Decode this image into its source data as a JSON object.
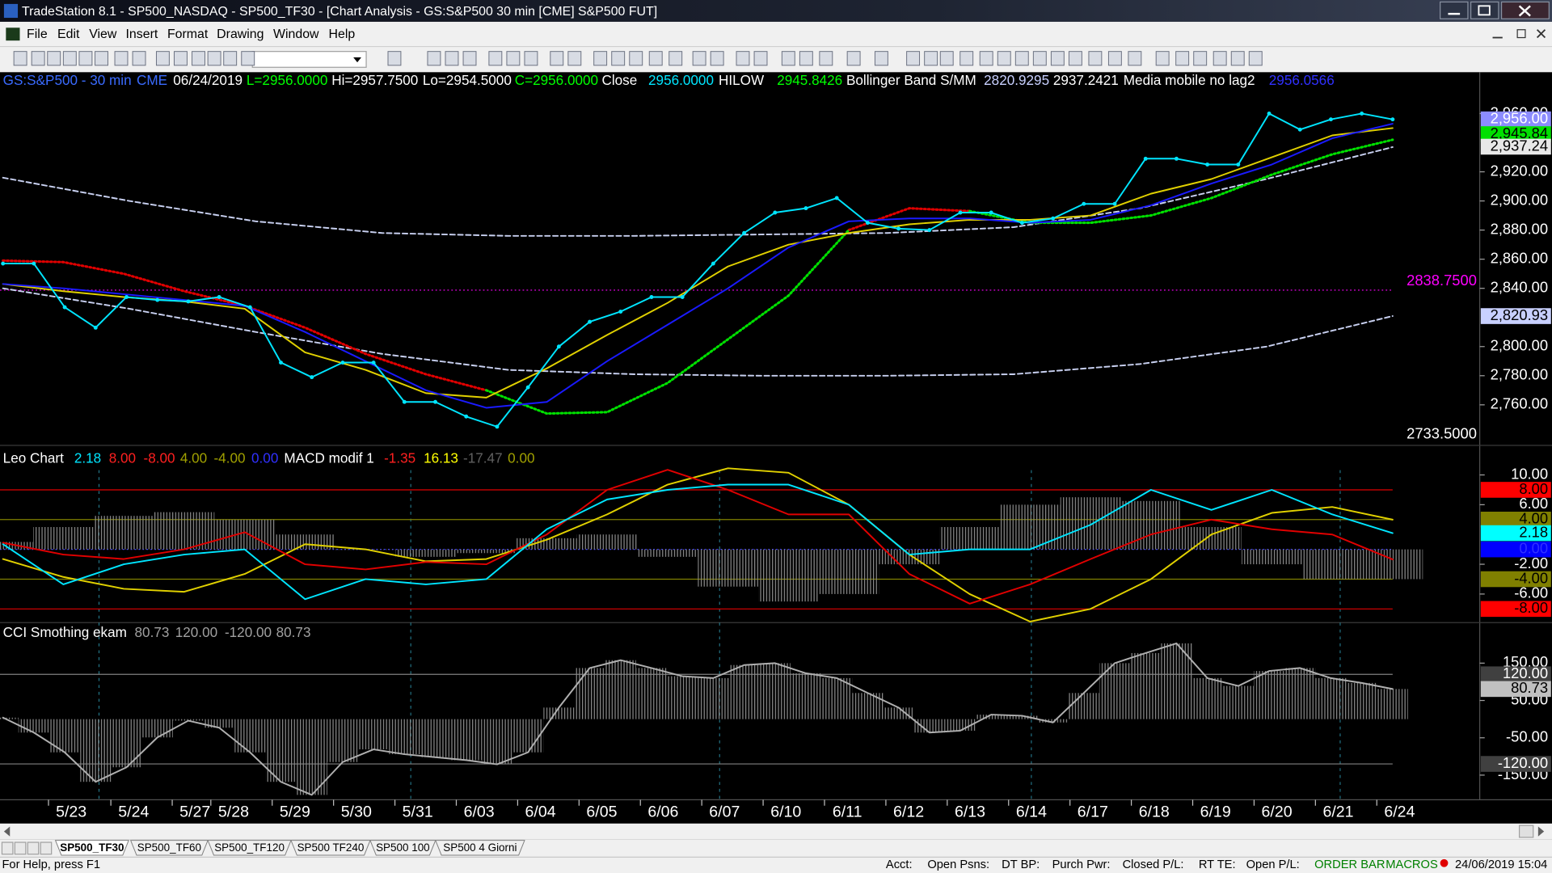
{
  "window": {
    "title": "TradeStation 8.1 - SP500_NASDAQ - SP500_TF30 - [Chart Analysis - GS:S&P500  30 min  [CME] S&P500 FUT]"
  },
  "menu": [
    "File",
    "Edit",
    "View",
    "Insert",
    "Format",
    "Drawing",
    "Window",
    "Help"
  ],
  "date_axis": [
    "5/23",
    "5/24",
    "5/27",
    "5/28",
    "5/29",
    "5/30",
    "5/31",
    "6/03",
    "6/04",
    "6/05",
    "6/06",
    "6/07",
    "6/10",
    "6/11",
    "6/12",
    "6/13",
    "6/14",
    "6/17",
    "6/18",
    "6/19",
    "6/20",
    "6/21",
    "6/24"
  ],
  "tabs": [
    "SP500_TF30",
    "SP500_TF60",
    "SP500_TF120",
    "SP500 TF240",
    "SP500 100",
    "SP500 4 Giorni"
  ],
  "status": [
    {
      "text": "For Help, press F1",
      "color": "#000000"
    },
    {
      "text": "Acct:",
      "color": "#000000"
    },
    {
      "text": "Open Psns:",
      "color": "#000000"
    },
    {
      "text": "DT BP:",
      "color": "#000000"
    },
    {
      "text": "Purch Pwr:",
      "color": "#000000"
    },
    {
      "text": "Closed P/L:",
      "color": "#000000"
    },
    {
      "text": "RT TE:",
      "color": "#000000"
    },
    {
      "text": "Open P/L:",
      "color": "#000000"
    },
    {
      "text": "ORDER BAR",
      "color": "#008000"
    },
    {
      "text": "MACROS",
      "color": "#008000"
    },
    {
      "text": "24/06/2019 15:04",
      "color": "#000000"
    }
  ],
  "chart_data": [
    {
      "type": "line",
      "ylim": [
        2733.5,
        2987
      ],
      "yticks": [
        {
          "value": 2760,
          "label": "2,760.00"
        },
        {
          "value": 2780,
          "label": "2,780.00"
        },
        {
          "value": 2800,
          "label": "2,800.00"
        },
        {
          "value": 2840,
          "label": "2,840.00"
        },
        {
          "value": 2860,
          "label": "2,860.00"
        },
        {
          "value": 2880,
          "label": "2,880.00"
        },
        {
          "value": 2900,
          "label": "2,900.00"
        },
        {
          "value": 2920,
          "label": "2,920.00"
        },
        {
          "value": 2960,
          "label": "2,960.00"
        }
      ],
      "header": [
        {
          "text": "GS:S&P500 - 30 min",
          "color": "#3a6bff"
        },
        {
          "text": "CME",
          "color": "#3a6bff"
        },
        {
          "text": "06/24/2019",
          "color": "#ffffff"
        },
        {
          "text": "L=2956.0000",
          "color": "#00ff00"
        },
        {
          "text": "Hi=2957.7500",
          "color": "#ffffff"
        },
        {
          "text": "Lo=2954.5000",
          "color": "#ffffff"
        },
        {
          "text": "C=2956.0000",
          "color": "#00ff00"
        },
        {
          "text": "Close",
          "color": "#ffffff"
        },
        {
          "text": "2956.0000",
          "color": "#00e5ff"
        },
        {
          "text": "HILOW",
          "color": "#ffffff"
        },
        {
          "text": "2945.8426",
          "color": "#00ff00"
        },
        {
          "text": "Bollinger Band S/MM",
          "color": "#ffffff"
        },
        {
          "text": "2820.9295",
          "color": "#c8d0ff"
        },
        {
          "text": "2937.2421",
          "color": "#ffffff"
        },
        {
          "text": "Media mobile no lag2",
          "color": "#ffffff"
        },
        {
          "text": "2956.0566",
          "color": "#3030ff"
        }
      ],
      "levels": [
        {
          "value": 2838.75,
          "color": "#ff00ff",
          "style": "dotted"
        }
      ],
      "series": [
        {
          "color": "#c8d0f0",
          "style": "dashed",
          "values": [
            2916,
            2900,
            2886,
            2878,
            2876,
            2876,
            2877,
            2878,
            2882,
            2895,
            2915,
            2937
          ]
        },
        {
          "color": "#c8d0f0",
          "style": "dashed",
          "values": [
            2840,
            2826,
            2810,
            2795,
            2784,
            2781,
            2780,
            2780,
            2781,
            2788,
            2800,
            2821
          ]
        },
        {
          "color": "#e00000",
          "style": "dotted",
          "values": [
            2859,
            2858,
            2850,
            2838,
            2828,
            2813,
            2795,
            2781,
            2770,
            null,
            null,
            null,
            null,
            null,
            2880,
            2895,
            2893,
            null,
            null,
            null,
            null,
            null,
            null,
            null
          ]
        },
        {
          "color": "#00e000",
          "style": "dotted",
          "values": [
            null,
            null,
            null,
            null,
            null,
            null,
            null,
            null,
            2770,
            2754,
            2755,
            2775,
            2805,
            2835,
            2880,
            null,
            2893,
            2885,
            2885,
            2890,
            2902,
            2918,
            2932,
            2942
          ]
        },
        {
          "color": "#e0d000",
          "style": "line",
          "values": [
            2843,
            2838,
            2834,
            2831,
            2826,
            2796,
            2784,
            2768,
            2765,
            2785,
            2808,
            2830,
            2855,
            2870,
            2878,
            2884,
            2887,
            2887,
            2890,
            2905,
            2915,
            2930,
            2945,
            2950
          ]
        },
        {
          "color": "#1a1aff",
          "style": "line",
          "values": [
            2843,
            2840,
            2836,
            2832,
            2828,
            2810,
            2790,
            2770,
            2758,
            2762,
            2790,
            2815,
            2840,
            2868,
            2886,
            2888,
            2888,
            2885,
            2887,
            2897,
            2912,
            2925,
            2943,
            2953
          ]
        },
        {
          "color": "#00e5ff",
          "style": "dots",
          "values": [
            2857,
            2857,
            2827,
            2813,
            2834,
            2832,
            2831,
            2834,
            2827,
            2789,
            2779,
            2789,
            2789,
            2762,
            2762,
            2752,
            2745,
            2772,
            2800,
            2817,
            2824,
            2834,
            2834,
            2857,
            2878,
            2892,
            2895,
            2902,
            2885,
            2881,
            2880,
            2892,
            2892,
            2885,
            2888,
            2898,
            2898,
            2929,
            2929,
            2925,
            2925,
            2960,
            2949,
            2956,
            2960,
            2956
          ]
        }
      ],
      "axis_markers": [
        {
          "value": 2956,
          "label": "2,956.00",
          "bg": "#8c8cff",
          "color": "#ffffff"
        },
        {
          "value": 2945.84,
          "label": "2,945.84",
          "bg": "#00e000",
          "color": "#000000"
        },
        {
          "value": 2937.24,
          "label": "2,937.24",
          "bg": "#e8e8e8",
          "color": "#000000"
        },
        {
          "value": 2820.93,
          "label": "2,820.93",
          "bg": "#c8d0ff",
          "color": "#000000"
        },
        {
          "value": 2838.75,
          "label": "2838.7500",
          "color": "#ff00ff"
        },
        {
          "value": 2733.5,
          "label": "2733.5000",
          "color": "#ffffff"
        }
      ]
    },
    {
      "type": "line",
      "ylim": [
        -9.7,
        13.3
      ],
      "yticks": [
        {
          "value": 10,
          "label": "10.00"
        },
        {
          "value": 6,
          "label": "6.00"
        },
        {
          "value": -2,
          "label": "-2.00"
        },
        {
          "value": -6,
          "label": "-6.00"
        }
      ],
      "header": [
        {
          "text": "Leo Chart",
          "color": "#ffffff"
        },
        {
          "text": "2.18",
          "color": "#00e5ff"
        },
        {
          "text": "8.00",
          "color": "#ff2020"
        },
        {
          "text": "-8.00",
          "color": "#ff2020"
        },
        {
          "text": "4.00",
          "color": "#a0a000"
        },
        {
          "text": "-4.00",
          "color": "#a0a000"
        },
        {
          "text": "0.00",
          "color": "#3030ff"
        },
        {
          "text": "MACD modif 1",
          "color": "#ffffff"
        },
        {
          "text": "-1.35",
          "color": "#ff2020"
        },
        {
          "text": "16.13",
          "color": "#ffff00"
        },
        {
          "text": "-17.47",
          "color": "#606060"
        },
        {
          "text": "0.00",
          "color": "#a0a000"
        }
      ],
      "levels": [
        {
          "value": 8,
          "color": "#e00000",
          "style": "line"
        },
        {
          "value": -8,
          "color": "#e00000",
          "style": "line"
        },
        {
          "value": 4,
          "color": "#808000",
          "style": "line"
        },
        {
          "value": -4,
          "color": "#808000",
          "style": "line"
        },
        {
          "value": 0,
          "color": "#4040ff",
          "style": "dotted"
        }
      ],
      "series": [
        {
          "color": "#8a8a8a",
          "style": "histogram",
          "values": [
            1,
            3,
            4.5,
            5,
            4,
            2,
            0,
            -1,
            -0.5,
            1.5,
            2,
            -1,
            -5,
            -7,
            -6,
            -2,
            3,
            6,
            7,
            6.5,
            3,
            -2,
            -4,
            -4
          ]
        },
        {
          "color": "#e0d000",
          "style": "line",
          "values": [
            -1.3,
            -3.7,
            -5.3,
            -5.7,
            -3.3,
            0.7,
            0,
            -1.6,
            -1.3,
            1.3,
            4.7,
            8.7,
            10.9,
            10.3,
            6,
            -0.7,
            -6,
            -9.7,
            -8,
            -4,
            2,
            4.9,
            5.7,
            4
          ]
        },
        {
          "color": "#e00000",
          "style": "line",
          "values": [
            0.9,
            -0.7,
            -1.3,
            0,
            2.3,
            -2,
            -2.7,
            -1.7,
            -2,
            2,
            8,
            10.7,
            8,
            4.7,
            4.7,
            -3.3,
            -7.3,
            -4.7,
            -1.3,
            2,
            4,
            2.7,
            2,
            -1.35
          ]
        },
        {
          "color": "#00e5ff",
          "style": "line",
          "values": [
            0.7,
            -4.7,
            -2,
            -0.7,
            0,
            -6.7,
            -4,
            -4.7,
            -4,
            2.7,
            6.7,
            8,
            8.7,
            8.7,
            6,
            -0.7,
            0,
            0,
            3.3,
            8,
            5.3,
            8,
            4.7,
            2.18
          ]
        }
      ],
      "axis_markers": [
        {
          "value": 8,
          "label": "8.00",
          "bg": "#ff0000",
          "color": "#000000"
        },
        {
          "value": 4,
          "label": "4.00",
          "bg": "#808000",
          "color": "#000000"
        },
        {
          "value": 2.18,
          "label": "2.18",
          "bg": "#00ffff",
          "color": "#000000"
        },
        {
          "value": 0,
          "label": "0.00",
          "bg": "#0000ff",
          "color": "#3030ff"
        },
        {
          "value": -4,
          "label": "-4.00",
          "bg": "#808000",
          "color": "#000000"
        },
        {
          "value": -8,
          "label": "-8.00",
          "bg": "#ff0000",
          "color": "#000000"
        }
      ]
    },
    {
      "type": "line",
      "ylim": [
        -216,
        256
      ],
      "yticks": [
        {
          "value": 150,
          "label": "150.00"
        },
        {
          "value": 50,
          "label": "50.00"
        },
        {
          "value": -50,
          "label": "-50.00"
        },
        {
          "value": -150,
          "label": "-150.00"
        }
      ],
      "header": [
        {
          "text": "CCI Smothing ekam",
          "color": "#ffffff"
        },
        {
          "text": "80.73",
          "color": "#a0a0a0"
        },
        {
          "text": "120.00",
          "color": "#a0a0a0"
        },
        {
          "text": "-120.00",
          "color": "#a0a0a0"
        },
        {
          "text": "80.73",
          "color": "#a0a0a0"
        }
      ],
      "levels": [
        {
          "value": 120,
          "color": "#808080",
          "style": "line"
        },
        {
          "value": -120,
          "color": "#808080",
          "style": "line"
        }
      ],
      "series": [
        {
          "color": "#b0b0b0",
          "style": "histogram-line",
          "values": [
            4,
            -36,
            -89,
            -168,
            -129,
            -49,
            -4,
            -23,
            -89,
            -168,
            -203,
            -115,
            -81,
            -94,
            -102,
            -110,
            -121,
            -89,
            31,
            137,
            158,
            137,
            115,
            110,
            145,
            150,
            123,
            110,
            70,
            31,
            -36,
            -31,
            12,
            9,
            -9,
            70,
            150,
            177,
            203,
            110,
            89,
            129,
            137,
            110,
            97,
            80.73
          ]
        }
      ],
      "axis_markers": [
        {
          "value": 120,
          "label": "120.00",
          "bg": "#404040",
          "color": "#ffffff"
        },
        {
          "value": 80.73,
          "label": "80.73",
          "bg": "#c0c0c0",
          "color": "#000000"
        },
        {
          "value": -120,
          "label": "-120.00",
          "bg": "#404040",
          "color": "#ffffff"
        }
      ]
    }
  ]
}
